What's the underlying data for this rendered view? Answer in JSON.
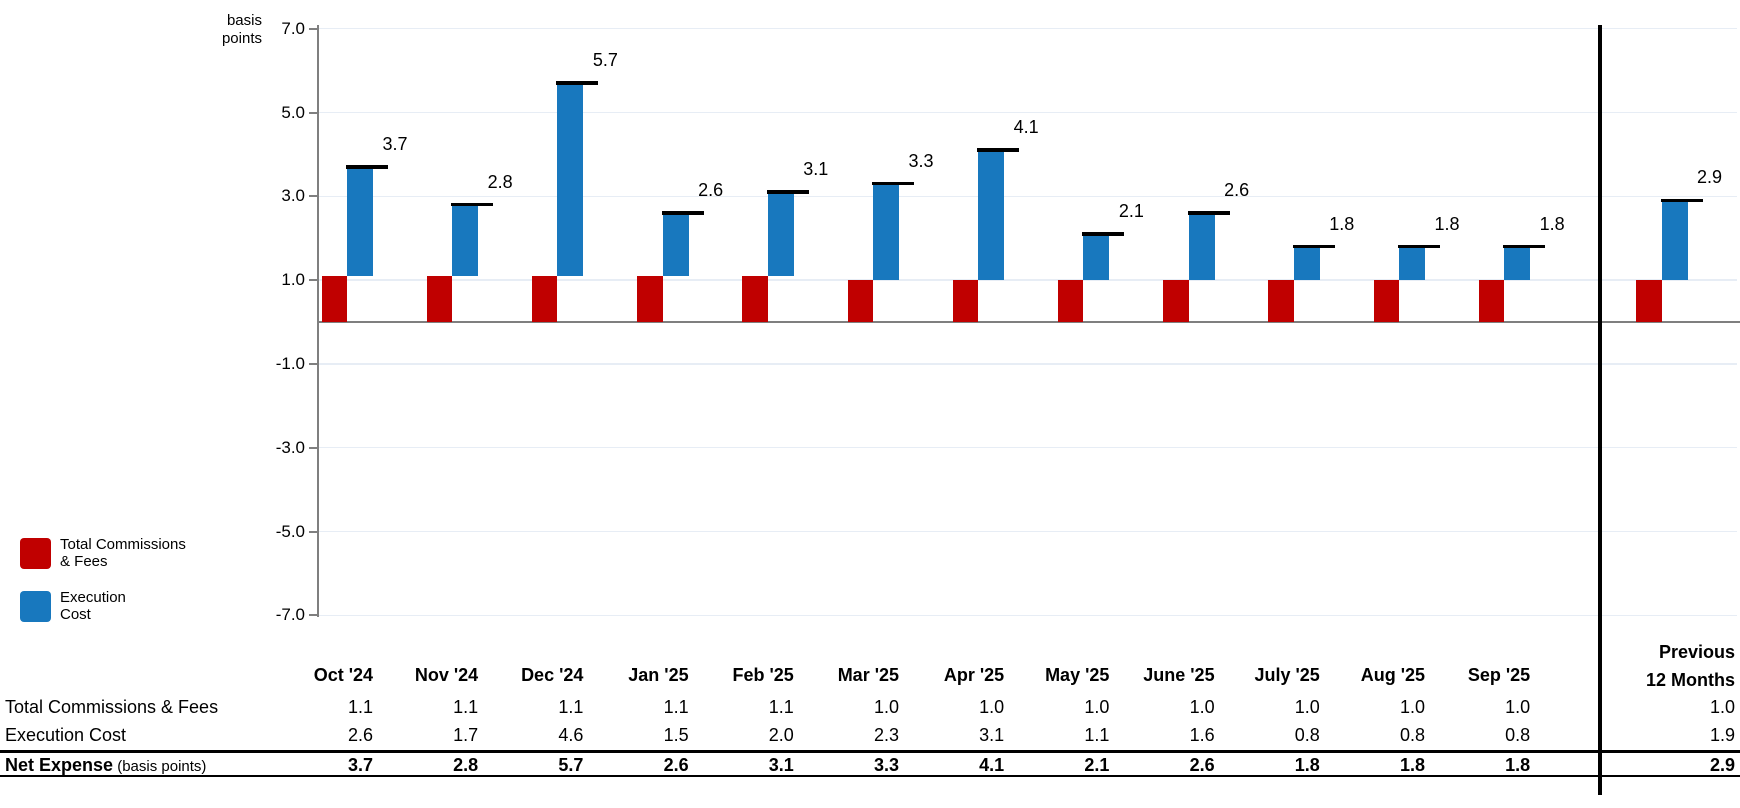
{
  "chart": {
    "unit_lines": [
      "basis",
      "points"
    ],
    "y_tick_labels": [
      "7.0",
      "5.0",
      "3.0",
      "1.0",
      "-1.0",
      "-3.0",
      "-5.0",
      "-7.0"
    ],
    "legend": [
      {
        "line1": "Total Commissions",
        "line2": "& Fees",
        "color": "#c00000"
      },
      {
        "line1": "Execution",
        "line2": "Cost",
        "color": "#1878be"
      }
    ],
    "colors": {
      "commissions": "#c00000",
      "execution": "#1878be",
      "marker": "#000000",
      "axis": "#7f7f7f",
      "gridline": "#e7edf5"
    }
  },
  "chart_data": {
    "type": "bar",
    "stacked": true,
    "title": "",
    "ylabel": "basis points",
    "ylim": [
      -7.0,
      7.0
    ],
    "y_ticks": [
      7.0,
      5.0,
      3.0,
      1.0,
      -1.0,
      -3.0,
      -5.0,
      -7.0
    ],
    "gridlines": true,
    "legend_position": "bottom-left",
    "categories": [
      "Oct '24",
      "Nov '24",
      "Dec '24",
      "Jan '25",
      "Feb '25",
      "Mar '25",
      "Apr '25",
      "May '25",
      "June '25",
      "July '25",
      "Aug '25",
      "Sep '25",
      "Previous 12 Months"
    ],
    "series": [
      {
        "name": "Total Commissions & Fees",
        "color": "#c00000",
        "values": [
          1.1,
          1.1,
          1.1,
          1.1,
          1.1,
          1.0,
          1.0,
          1.0,
          1.0,
          1.0,
          1.0,
          1.0,
          1.0
        ]
      },
      {
        "name": "Execution Cost",
        "color": "#1878be",
        "values": [
          2.6,
          1.7,
          4.6,
          1.5,
          2.0,
          2.3,
          3.1,
          1.1,
          1.6,
          0.8,
          0.8,
          0.8,
          1.9
        ]
      }
    ],
    "totals": [
      3.7,
      2.8,
      5.7,
      2.6,
      3.1,
      3.3,
      4.1,
      2.1,
      2.6,
      1.8,
      1.8,
      1.8,
      2.9
    ],
    "totals_label": "Net Expense"
  },
  "table": {
    "month_columns": [
      "Oct '24",
      "Nov '24",
      "Dec '24",
      "Jan '25",
      "Feb '25",
      "Mar '25",
      "Apr '25",
      "May '25",
      "June '25",
      "July '25",
      "Aug '25",
      "Sep '25"
    ],
    "prev_header_lines": [
      "Previous",
      "12 Months"
    ],
    "rows": [
      {
        "label": "Total Commissions & Fees",
        "bold": false,
        "values": [
          "1.1",
          "1.1",
          "1.1",
          "1.1",
          "1.1",
          "1.0",
          "1.0",
          "1.0",
          "1.0",
          "1.0",
          "1.0",
          "1.0"
        ],
        "prev": "1.0"
      },
      {
        "label": "Execution Cost",
        "bold": false,
        "values": [
          "2.6",
          "1.7",
          "4.6",
          "1.5",
          "2.0",
          "2.3",
          "3.1",
          "1.1",
          "1.6",
          "0.8",
          "0.8",
          "0.8"
        ],
        "prev": "1.9"
      },
      {
        "label": "Net Expense",
        "suffix": " (basis points)",
        "bold": true,
        "values": [
          "3.7",
          "2.8",
          "5.7",
          "2.6",
          "3.1",
          "3.3",
          "4.1",
          "2.1",
          "2.6",
          "1.8",
          "1.8",
          "1.8"
        ],
        "prev": "2.9"
      }
    ]
  }
}
